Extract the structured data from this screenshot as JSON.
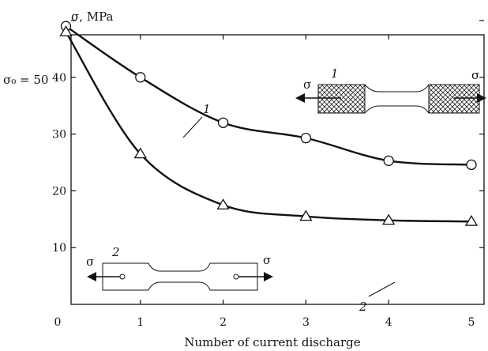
{
  "chart_data": {
    "type": "line",
    "ylabel": "σ, MPa",
    "xlabel": "Number of current discharge",
    "y0_label": "σ₀ = 50",
    "xlim": [
      0,
      5
    ],
    "ylim": [
      0,
      60
    ],
    "x_ticks": [
      "0",
      "1",
      "2",
      "3",
      "4",
      "5"
    ],
    "y_ticks": [
      "10",
      "20",
      "30",
      "40"
    ],
    "grid": false,
    "series": [
      {
        "name": "1",
        "marker": "circle",
        "x": [
          0.1,
          1,
          2,
          3,
          4,
          5
        ],
        "y": [
          49,
          40,
          32,
          29.3,
          25.3,
          24.6
        ]
      },
      {
        "name": "2",
        "marker": "triangle",
        "x": [
          0.1,
          1,
          2,
          3,
          4,
          5
        ],
        "y": [
          48,
          26.5,
          17.5,
          15.5,
          14.8,
          14.6
        ]
      }
    ],
    "insets": [
      {
        "label": "1",
        "stress": "σ",
        "style": "hatched-grips"
      },
      {
        "label": "2",
        "stress": "σ",
        "style": "pin-holes"
      }
    ]
  }
}
